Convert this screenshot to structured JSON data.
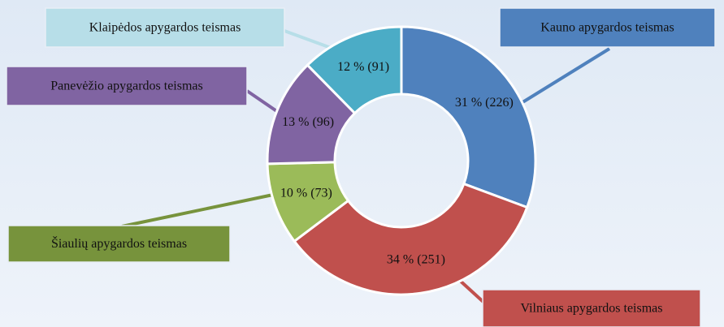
{
  "chart_data": {
    "type": "donut",
    "categories": [
      "Kauno apygardos teismas",
      "Vilniaus apygardos teismas",
      "Šiaulių apygardos teismas",
      "Panevėžio apygardos teismas",
      "Klaipėdos apygardos teismas"
    ],
    "values": [
      226,
      251,
      73,
      96,
      91
    ],
    "value_labels": [
      "31 % (226)",
      "34 % (251)",
      "10 % (73)",
      "13 % (96)",
      "12 % (91)"
    ],
    "colors": [
      "#4f81bd",
      "#c0504d",
      "#9bbb59",
      "#8064a2",
      "#4bacc6"
    ]
  }
}
